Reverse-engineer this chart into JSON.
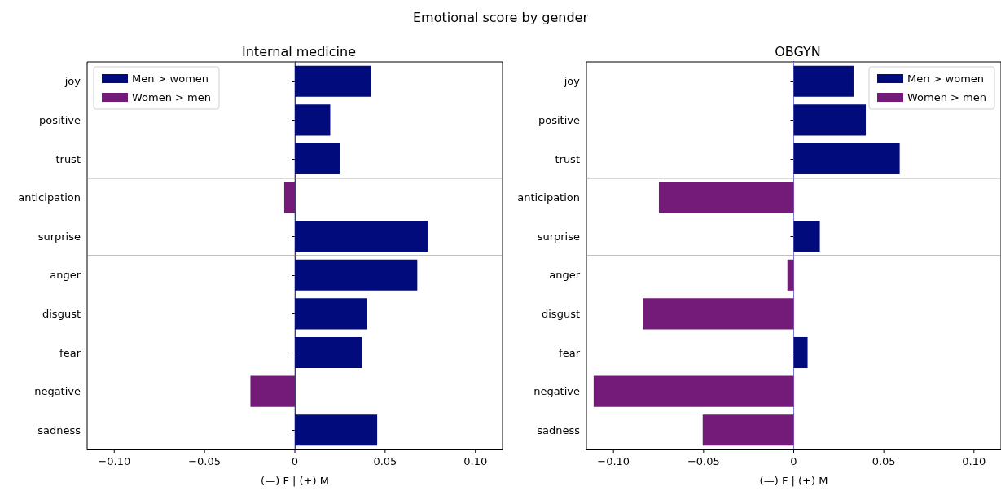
{
  "chart_data": [
    {
      "type": "bar",
      "orientation": "horizontal",
      "title": "Internal medicine",
      "xlabel": "(—) F | (+) M",
      "annotations": [
        "Emotional score by gender"
      ],
      "categories": [
        "joy",
        "positive",
        "trust",
        "anticipation",
        "surprise",
        "anger",
        "disgust",
        "fear",
        "negative",
        "sadness"
      ],
      "series": [
        {
          "name": "Men > women",
          "color": "#010b7c",
          "values": [
            0.0424,
            0.0196,
            0.0248,
            null,
            0.0735,
            0.0678,
            0.0399,
            0.0372,
            null,
            0.0456
          ]
        },
        {
          "name": "Women > men",
          "color": "#741b7a",
          "values": [
            null,
            null,
            null,
            -0.0059,
            null,
            null,
            null,
            null,
            -0.0246,
            null
          ]
        }
      ],
      "xlim": [
        -0.115,
        0.115
      ],
      "xticks": [
        {
          "value": -0.1,
          "label": "−0.10"
        },
        {
          "value": -0.05,
          "label": "−0.05"
        },
        {
          "value": 0,
          "label": "0"
        },
        {
          "value": 0.05,
          "label": "0.05"
        },
        {
          "value": 0.1,
          "label": "0.10"
        }
      ],
      "ref_lines": [
        {
          "axis": "x",
          "value": 0,
          "color": "#7b7bd6"
        }
      ],
      "legend": "top left",
      "grid": false
    },
    {
      "type": "bar",
      "orientation": "horizontal",
      "title": "OBGYN",
      "xlabel": "(—) F | (+) M",
      "categories": [
        "joy",
        "positive",
        "trust",
        "anticipation",
        "surprise",
        "anger",
        "disgust",
        "fear",
        "negative",
        "sadness"
      ],
      "series": [
        {
          "name": "Men > women",
          "color": "#010b7c",
          "values": [
            0.0332,
            0.04,
            0.0588,
            null,
            0.0145,
            null,
            null,
            0.0077,
            null,
            null
          ]
        },
        {
          "name": "Women > men",
          "color": "#741b7a",
          "values": [
            null,
            null,
            null,
            -0.0748,
            null,
            -0.0035,
            -0.0838,
            null,
            -0.111,
            -0.0505
          ]
        }
      ],
      "xlim": [
        -0.115,
        0.115
      ],
      "xticks": [
        {
          "value": -0.1,
          "label": "−0.10"
        },
        {
          "value": -0.05,
          "label": "−0.05"
        },
        {
          "value": 0,
          "label": "0"
        },
        {
          "value": 0.05,
          "label": "0.05"
        },
        {
          "value": 0.1,
          "label": "0.10"
        }
      ],
      "ref_lines": [
        {
          "axis": "x",
          "value": 0,
          "color": "#7b7bd6"
        }
      ],
      "legend": "top right",
      "grid": false
    }
  ]
}
